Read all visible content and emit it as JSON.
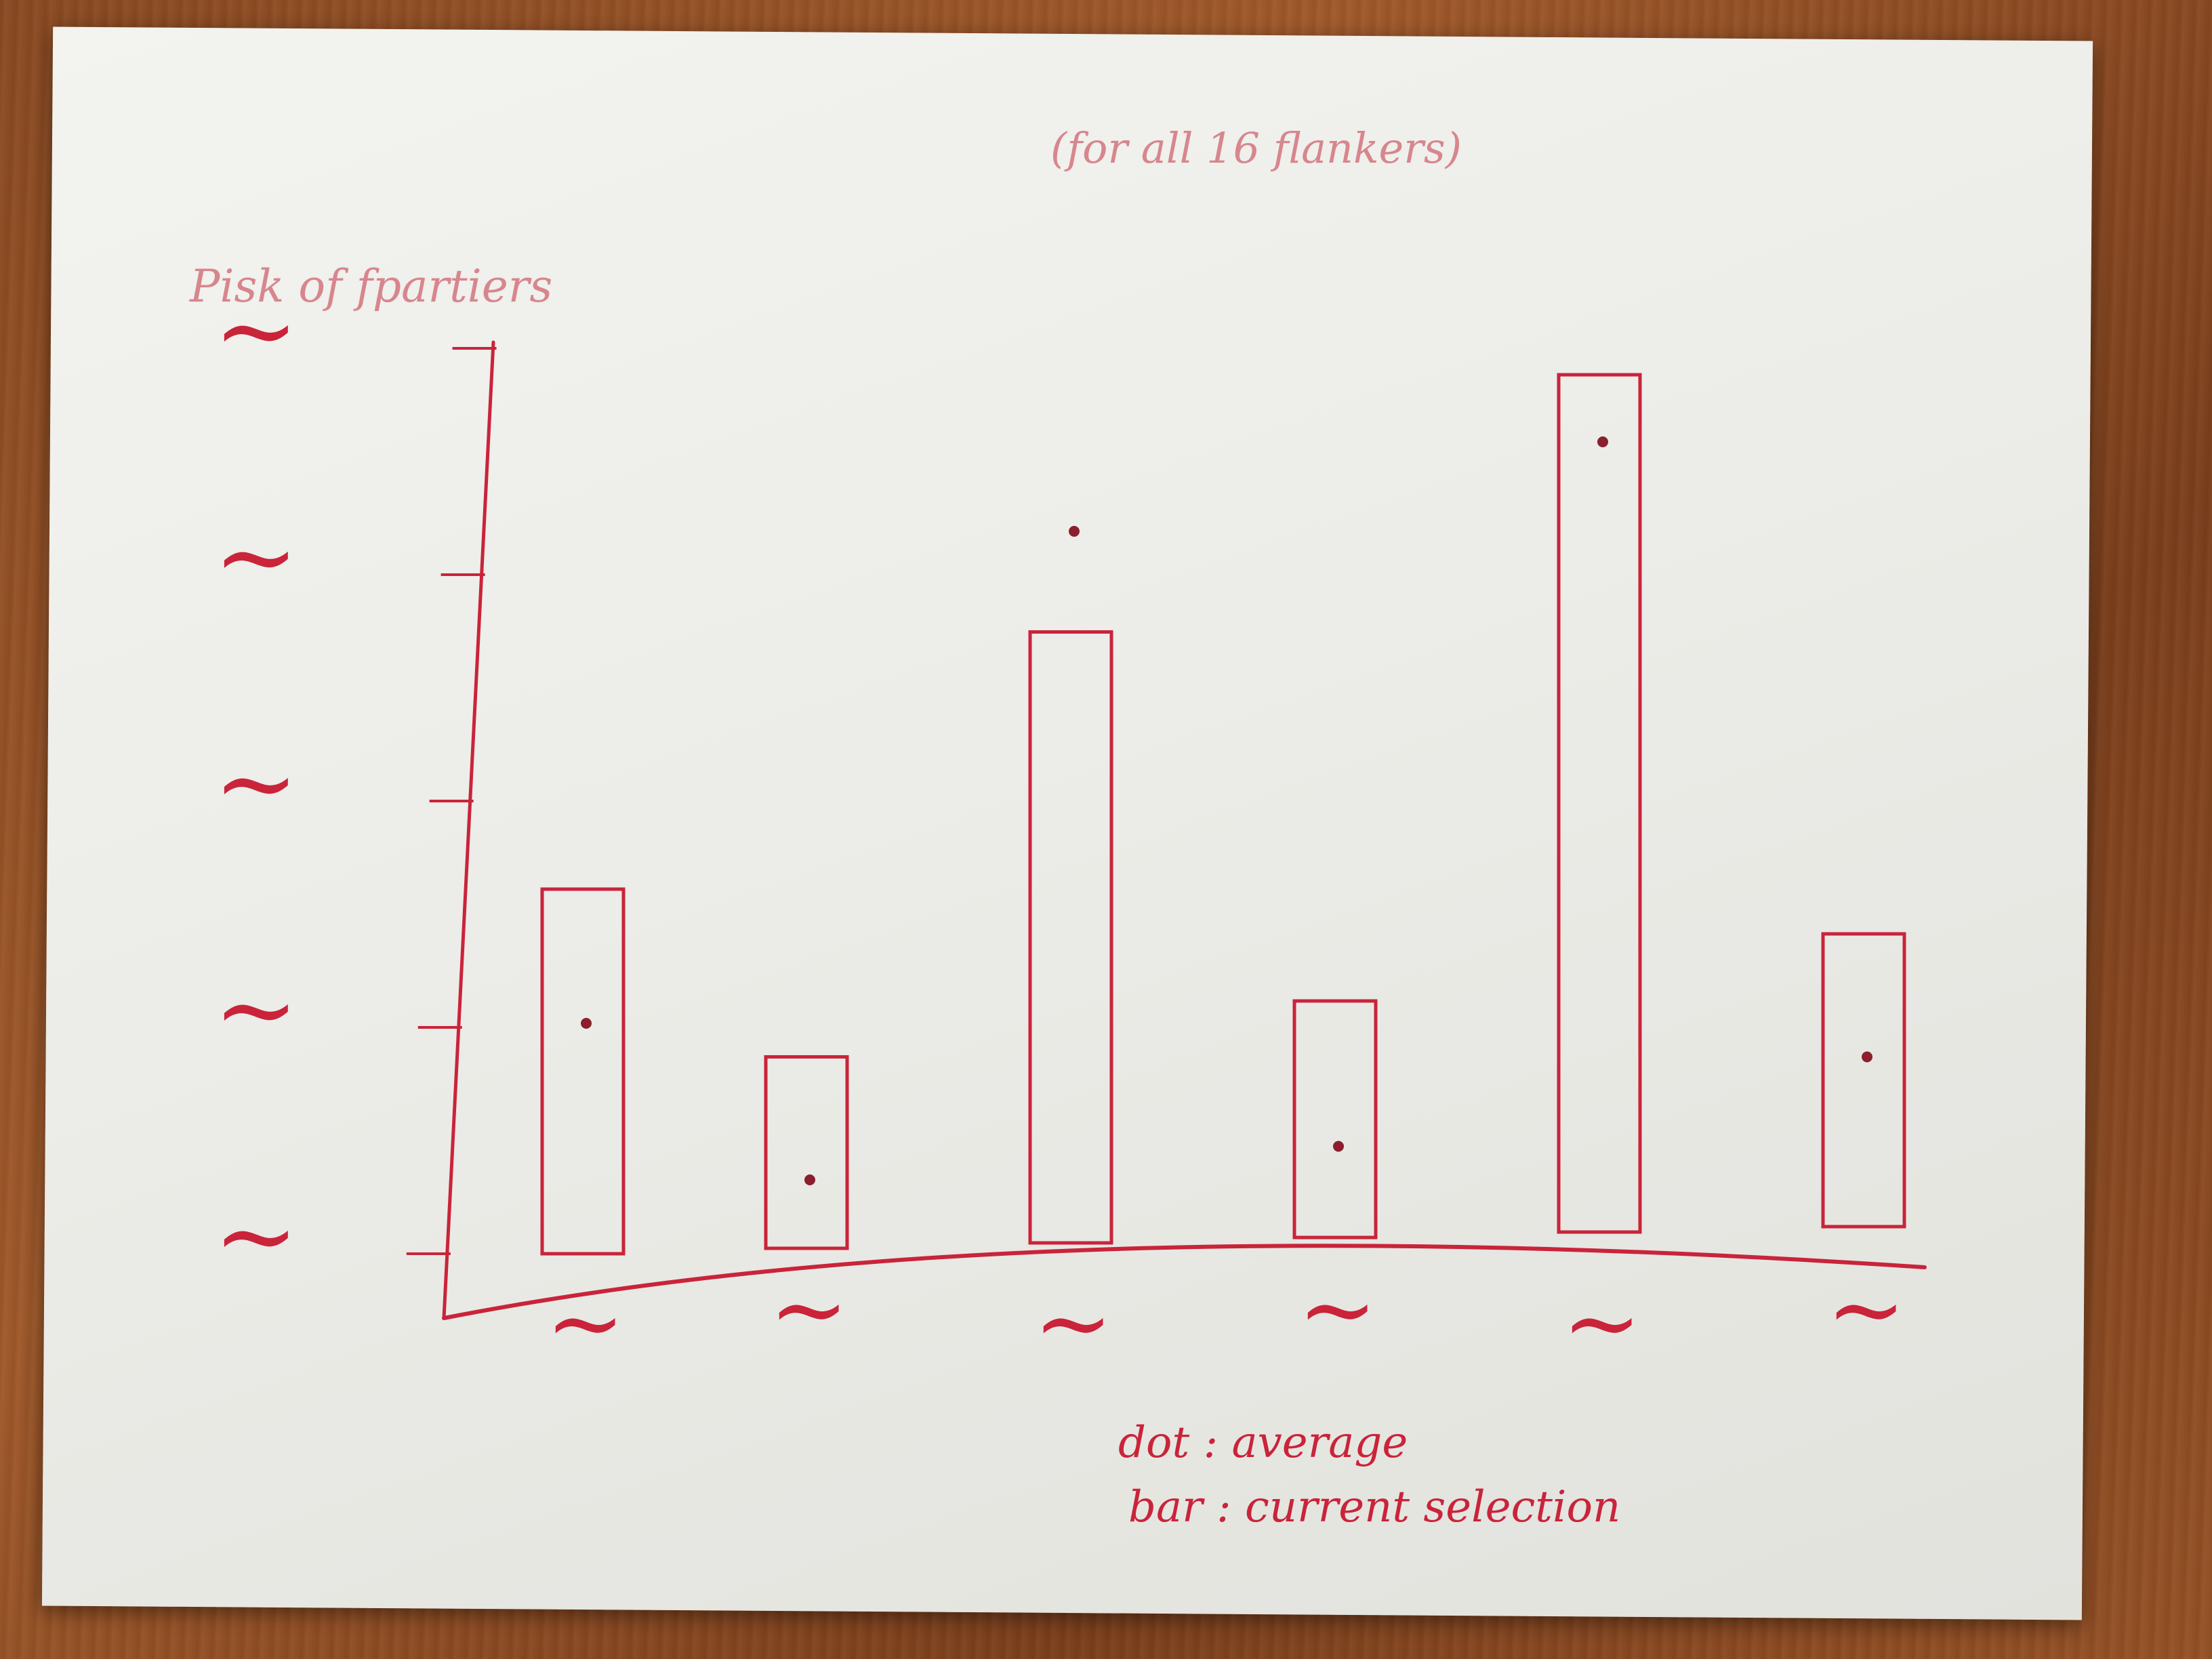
{
  "chart_data": {
    "type": "bar",
    "title": "(for all 16 flankers)",
    "ylabel": "Pisk of fpartiers",
    "ylim": [
      0,
      4
    ],
    "yticks": [
      "~",
      "~",
      "~",
      "~",
      "~"
    ],
    "categories": [
      "~",
      "~",
      "~",
      "~",
      "~",
      "~"
    ],
    "series": [
      {
        "name": "bar: current selection",
        "values": [
          1.6,
          0.85,
          2.75,
          1.1,
          3.9,
          1.4
        ],
        "mark": "bar"
      },
      {
        "name": "dot: average",
        "values": [
          1.0,
          0.3,
          3.2,
          0.45,
          3.6,
          0.85
        ],
        "mark": "dot"
      }
    ],
    "legend": {
      "line1": "dot : average",
      "line2": "bar : current selection"
    },
    "grid": false,
    "colors": {
      "ink": "#c9243a",
      "faint_ink": "#d7868e",
      "dot": "#8b1f2d"
    }
  }
}
